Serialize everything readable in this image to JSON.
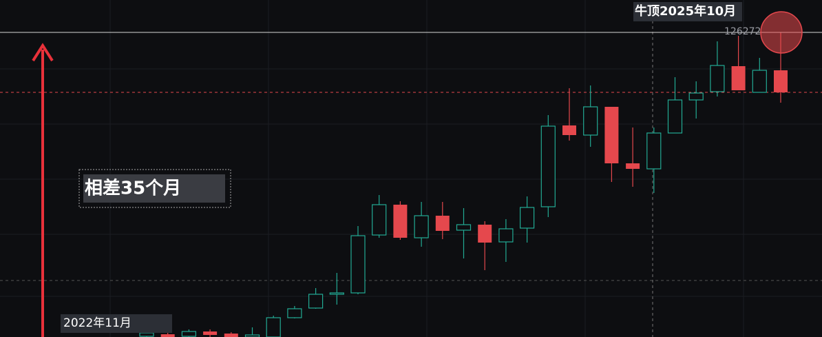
{
  "chart_data": {
    "type": "candlestick",
    "ylim": [
      15772,
      138022
    ],
    "open": [
      16022,
      16772,
      16022,
      17772,
      17022,
      15772,
      15772,
      22772,
      26272,
      31272,
      31772,
      52772,
      63772,
      51772,
      59772,
      54522,
      56522,
      50272,
      55272,
      63022,
      92522,
      89022,
      99272,
      78772,
      76772,
      89772,
      101772,
      104772,
      114022,
      104522,
      112522
    ],
    "high": [
      18522,
      17272,
      18522,
      18522,
      17522,
      19272,
      23522,
      27022,
      33522,
      39022,
      56022,
      67272,
      65022,
      64772,
      64772,
      62522,
      57772,
      58522,
      66772,
      96272,
      106022,
      107022,
      99272,
      91772,
      91772,
      110022,
      108522,
      123022,
      125022,
      117022,
      126272
    ],
    "low": [
      15772,
      15772,
      15772,
      15772,
      15772,
      15772,
      15772,
      22522,
      26022,
      27522,
      31272,
      51772,
      51022,
      48522,
      51272,
      44272,
      40022,
      43022,
      50022,
      59272,
      87022,
      84772,
      72022,
      70272,
      68022,
      89772,
      95022,
      103022,
      105272,
      104522,
      100772
    ],
    "close": [
      17272,
      15772,
      17772,
      16522,
      15772,
      16522,
      22772,
      26022,
      31272,
      31772,
      52522,
      63772,
      51772,
      59772,
      54272,
      56522,
      50022,
      55022,
      62772,
      92272,
      89022,
      99272,
      78772,
      76772,
      89772,
      101772,
      104272,
      114272,
      105272,
      112522,
      104522
    ],
    "colors": {
      "up": "#22ab94",
      "down": "#e5484d"
    },
    "price_label": 126272,
    "annotations": [
      "牛顶2025年10月",
      "相差35个月",
      "2022年11月"
    ]
  }
}
